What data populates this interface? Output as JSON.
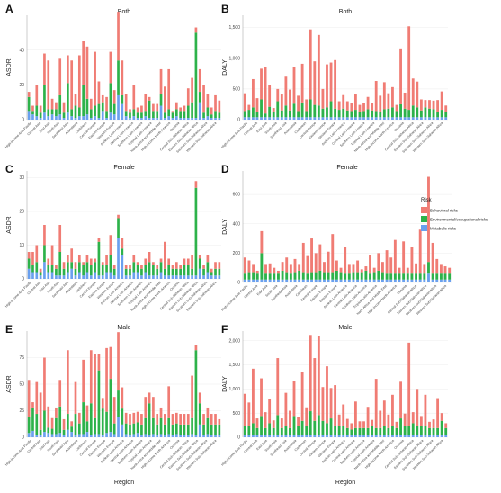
{
  "regions": [
    "High-income Asia Pacific",
    "Central Asia",
    "East Asia",
    "South Asia",
    "Southeast Asia",
    "Australasia",
    "Caribbean",
    "Central Europe",
    "Eastern Europe",
    "Western Europe",
    "Andean Latin America",
    "Central Latin America",
    "Southern Latin America",
    "Tropical Latin America",
    "North Africa and Middle East",
    "High-income North America",
    "Oceania",
    "Central Sub-Saharan Africa",
    "Eastern Sub-Saharan Africa",
    "Southern Sub-Saharan Africa",
    "Western Sub-Saharan Africa"
  ],
  "shared_xlabel": "Region",
  "legend": {
    "title": "Risk",
    "items": [
      {
        "name": "Behavioral risks",
        "color": "#F07C74"
      },
      {
        "name": "Environmental/occupational risks",
        "color": "#2DB24A"
      },
      {
        "name": "Metabolic risks",
        "color": "#6AA0EE"
      }
    ]
  },
  "chart_data": [
    {
      "panel": "A",
      "type": "bar",
      "stacked": true,
      "title": "Both",
      "ylabel": "ASDR",
      "xlabel": "",
      "ylim": [
        0,
        60
      ],
      "yticks": [
        0,
        20,
        40
      ],
      "series": [
        {
          "name": "Metabolic risks",
          "color": "#6AA0EE",
          "values": [
            5,
            3,
            2,
            1,
            4,
            2,
            3,
            2,
            3,
            1,
            4,
            2,
            1,
            2,
            2,
            3,
            1,
            2,
            1,
            5,
            1,
            4,
            3,
            14,
            9,
            2,
            1,
            2,
            1,
            1,
            2,
            1,
            1,
            1,
            8,
            1,
            2,
            1,
            2,
            1,
            1,
            1,
            1,
            1,
            10,
            1,
            2,
            1,
            1,
            1
          ]
        },
        {
          "name": "Environmental/occupational risks",
          "color": "#2DB24A",
          "values": [
            8,
            2,
            6,
            3,
            16,
            4,
            3,
            4,
            11,
            3,
            17,
            4,
            7,
            5,
            18,
            9,
            5,
            6,
            8,
            5,
            4,
            17,
            6,
            20,
            5,
            3,
            3,
            4,
            3,
            3,
            3,
            10,
            4,
            4,
            7,
            3,
            4,
            3,
            4,
            4,
            4,
            7,
            9,
            49,
            6,
            3,
            5,
            2,
            4,
            3
          ]
        },
        {
          "name": "Behavioral risks",
          "color": "#F07C74",
          "values": [
            3,
            3,
            12,
            4,
            18,
            28,
            6,
            4,
            21,
            6,
            16,
            28,
            7,
            30,
            25,
            30,
            6,
            31,
            13,
            4,
            8,
            18,
            8,
            28,
            20,
            10,
            2,
            14,
            3,
            4,
            10,
            2,
            4,
            4,
            14,
            15,
            23,
            1,
            4,
            2,
            3,
            10,
            14,
            3,
            13,
            16,
            8,
            4,
            9,
            7
          ]
        }
      ]
    },
    {
      "panel": "B",
      "type": "bar",
      "stacked": true,
      "title": "Both",
      "ylabel": "DALY",
      "xlabel": "",
      "ylim": [
        0,
        1700
      ],
      "yticks": [
        0,
        500,
        1000,
        1500
      ],
      "series": [
        {
          "name": "Metabolic risks",
          "color": "#6AA0EE",
          "values": [
            40,
            40,
            40,
            40,
            40,
            40,
            40,
            40,
            40,
            40,
            40,
            40,
            40,
            40,
            40,
            40,
            40,
            40,
            40,
            40,
            40,
            40,
            40,
            40,
            40,
            40,
            40,
            40,
            40,
            40,
            40,
            40,
            40,
            40,
            40,
            40,
            40,
            40,
            40,
            40,
            40,
            40,
            40,
            40,
            40,
            40,
            40,
            40,
            40,
            40
          ]
        },
        {
          "name": "Environmental/occupational risks",
          "color": "#2DB24A",
          "values": [
            100,
            120,
            160,
            80,
            290,
            60,
            170,
            90,
            260,
            110,
            190,
            110,
            220,
            100,
            240,
            100,
            290,
            200,
            190,
            140,
            160,
            260,
            140,
            120,
            140,
            110,
            100,
            120,
            90,
            100,
            130,
            110,
            100,
            90,
            130,
            140,
            160,
            100,
            210,
            140,
            120,
            190,
            160,
            110,
            160,
            140,
            130,
            90,
            120,
            90
          ]
        },
        {
          "name": "Behavioral risks",
          "color": "#F07C74",
          "values": [
            290,
            80,
            460,
            230,
            500,
            760,
            360,
            60,
            200,
            260,
            470,
            340,
            590,
            250,
            630,
            190,
            1140,
            710,
            1150,
            320,
            700,
            630,
            790,
            140,
            220,
            150,
            130,
            250,
            110,
            130,
            200,
            120,
            490,
            260,
            440,
            250,
            330,
            100,
            910,
            260,
            1360,
            440,
            420,
            180,
            120,
            140,
            140,
            190,
            300,
            100
          ]
        }
      ]
    },
    {
      "panel": "C",
      "type": "bar",
      "stacked": true,
      "title": "Female",
      "ylabel": "ASDR",
      "xlabel": "",
      "ylim": [
        0,
        32
      ],
      "yticks": [
        0,
        10,
        20,
        30
      ],
      "series": [
        {
          "name": "Metabolic risks",
          "color": "#6AA0EE",
          "values": [
            3,
            2,
            2,
            1,
            5,
            2,
            2,
            1,
            1,
            1,
            2,
            3,
            1,
            2,
            1,
            2,
            1,
            2,
            1,
            1,
            2,
            2,
            1,
            12,
            7,
            1,
            1,
            2,
            2,
            1,
            2,
            1,
            1,
            1,
            2,
            1,
            1,
            1,
            1,
            1,
            1,
            1,
            1,
            1,
            3,
            1,
            2,
            1,
            1,
            1
          ]
        },
        {
          "name": "Environmental/occupational risks",
          "color": "#2DB24A",
          "values": [
            3,
            2,
            3,
            1,
            5,
            2,
            2,
            2,
            7,
            2,
            3,
            2,
            2,
            3,
            3,
            3,
            3,
            3,
            10,
            3,
            2,
            5,
            2,
            6,
            2,
            2,
            2,
            3,
            2,
            2,
            2,
            4,
            3,
            2,
            3,
            2,
            3,
            2,
            2,
            2,
            3,
            3,
            2,
            26,
            3,
            2,
            3,
            1,
            2,
            2
          ]
        },
        {
          "name": "Behavioral risks",
          "color": "#F07C74",
          "values": [
            2,
            4,
            5,
            1,
            6,
            2,
            6,
            1,
            8,
            2,
            2,
            4,
            2,
            2,
            1,
            2,
            2,
            1,
            1,
            1,
            3,
            6,
            1,
            1,
            3,
            1,
            1,
            2,
            1,
            1,
            2,
            3,
            1,
            1,
            1,
            8,
            2,
            1,
            2,
            1,
            2,
            2,
            4,
            2,
            1,
            1,
            2,
            1,
            2,
            2
          ]
        }
      ]
    },
    {
      "panel": "D",
      "type": "bar",
      "stacked": true,
      "title": "Female",
      "ylabel": "DALY",
      "xlabel": "",
      "ylim": [
        0,
        760
      ],
      "yticks": [
        0,
        200,
        400,
        600
      ],
      "series": [
        {
          "name": "Metabolic risks",
          "color": "#6AA0EE",
          "values": [
            20,
            20,
            20,
            20,
            20,
            20,
            20,
            20,
            20,
            20,
            20,
            20,
            20,
            20,
            20,
            20,
            20,
            20,
            20,
            20,
            20,
            20,
            20,
            20,
            20,
            20,
            20,
            20,
            20,
            20,
            20,
            20,
            20,
            20,
            20,
            20,
            20,
            20,
            20,
            20,
            20,
            20,
            20,
            20,
            60,
            20,
            20,
            20,
            20,
            20
          ]
        },
        {
          "name": "Environmental/occupational risks",
          "color": "#2DB24A",
          "values": [
            40,
            50,
            50,
            40,
            180,
            40,
            40,
            40,
            40,
            60,
            50,
            40,
            50,
            60,
            50,
            40,
            50,
            50,
            60,
            50,
            50,
            50,
            60,
            50,
            40,
            40,
            50,
            50,
            50,
            60,
            40,
            50,
            60,
            50,
            40,
            40,
            40,
            40,
            40,
            40,
            40,
            40,
            40,
            40,
            80,
            40,
            40,
            40,
            40,
            40
          ]
        },
        {
          "name": "Behavioral risks",
          "color": "#F07C74",
          "values": [
            110,
            80,
            50,
            20,
            150,
            60,
            70,
            40,
            20,
            60,
            100,
            60,
            90,
            40,
            200,
            120,
            230,
            130,
            180,
            70,
            140,
            260,
            70,
            30,
            180,
            60,
            50,
            80,
            20,
            30,
            130,
            30,
            120,
            70,
            160,
            110,
            230,
            40,
            220,
            40,
            180,
            70,
            300,
            60,
            580,
            210,
            100,
            60,
            50,
            40
          ]
        }
      ]
    },
    {
      "panel": "E",
      "type": "bar",
      "stacked": true,
      "title": "Male",
      "ylabel": "ASDR",
      "xlabel": "Region",
      "ylim": [
        0,
        100
      ],
      "yticks": [
        0,
        25,
        50,
        75
      ],
      "series": [
        {
          "name": "Metabolic risks",
          "color": "#6AA0EE",
          "values": [
            4,
            6,
            2,
            2,
            5,
            4,
            3,
            3,
            4,
            2,
            7,
            5,
            2,
            3,
            3,
            5,
            2,
            3,
            3,
            2,
            4,
            5,
            3,
            19,
            12,
            3,
            2,
            3,
            4,
            2,
            3,
            2,
            3,
            2,
            3,
            2,
            3,
            2,
            3,
            2,
            2,
            2,
            3,
            2,
            12,
            2,
            3,
            2,
            2,
            2
          ]
        },
        {
          "name": "Environmental/occupational risks",
          "color": "#2DB24A",
          "values": [
            15,
            22,
            20,
            5,
            20,
            5,
            5,
            15,
            25,
            5,
            15,
            5,
            20,
            10,
            30,
            10,
            30,
            15,
            60,
            25,
            20,
            50,
            10,
            25,
            15,
            10,
            10,
            10,
            10,
            10,
            15,
            30,
            15,
            10,
            15,
            10,
            15,
            10,
            10,
            10,
            10,
            10,
            15,
            80,
            20,
            10,
            15,
            10,
            10,
            10
          ]
        },
        {
          "name": "Behavioral risks",
          "color": "#F07C74",
          "values": [
            35,
            5,
            30,
            35,
            50,
            20,
            10,
            10,
            25,
            10,
            60,
            5,
            30,
            10,
            40,
            15,
            50,
            60,
            15,
            10,
            60,
            30,
            25,
            55,
            20,
            10,
            10,
            10,
            10,
            10,
            20,
            10,
            20,
            10,
            10,
            10,
            30,
            10,
            10,
            10,
            10,
            10,
            40,
            5,
            10,
            10,
            10,
            10,
            10,
            5
          ]
        }
      ]
    },
    {
      "panel": "F",
      "type": "bar",
      "stacked": true,
      "title": "Male",
      "ylabel": "DALY",
      "xlabel": "Region",
      "ylim": [
        0,
        2200
      ],
      "yticks": [
        0,
        500,
        1000,
        1500,
        2000
      ],
      "series": [
        {
          "name": "Metabolic risks",
          "color": "#6AA0EE",
          "values": [
            40,
            40,
            40,
            40,
            40,
            40,
            40,
            40,
            40,
            40,
            40,
            40,
            40,
            40,
            40,
            40,
            40,
            40,
            40,
            40,
            40,
            40,
            40,
            40,
            40,
            40,
            40,
            40,
            40,
            40,
            40,
            40,
            40,
            40,
            40,
            40,
            40,
            40,
            40,
            40,
            40,
            40,
            40,
            40,
            40,
            40,
            40,
            40,
            40,
            40
          ]
        },
        {
          "name": "Environmental/occupational risks",
          "color": "#2DB24A",
          "values": [
            200,
            200,
            250,
            150,
            400,
            150,
            250,
            150,
            420,
            150,
            200,
            150,
            400,
            200,
            300,
            200,
            500,
            300,
            420,
            300,
            250,
            350,
            200,
            200,
            200,
            150,
            120,
            150,
            150,
            150,
            150,
            200,
            150,
            150,
            200,
            150,
            200,
            150,
            350,
            200,
            200,
            250,
            200,
            200,
            200,
            150,
            150,
            150,
            300,
            150
          ]
        },
        {
          "name": "Behavioral risks",
          "color": "#F07C74",
          "values": [
            660,
            480,
            1130,
            200,
            780,
            330,
            500,
            160,
            1180,
            200,
            680,
            360,
            720,
            180,
            1010,
            380,
            1580,
            1300,
            1630,
            700,
            1180,
            630,
            840,
            230,
            440,
            190,
            130,
            550,
            140,
            140,
            440,
            120,
            1020,
            360,
            520,
            280,
            640,
            130,
            760,
            250,
            1720,
            230,
            760,
            200,
            640,
            130,
            180,
            620,
            160,
            100
          ]
        }
      ]
    }
  ]
}
